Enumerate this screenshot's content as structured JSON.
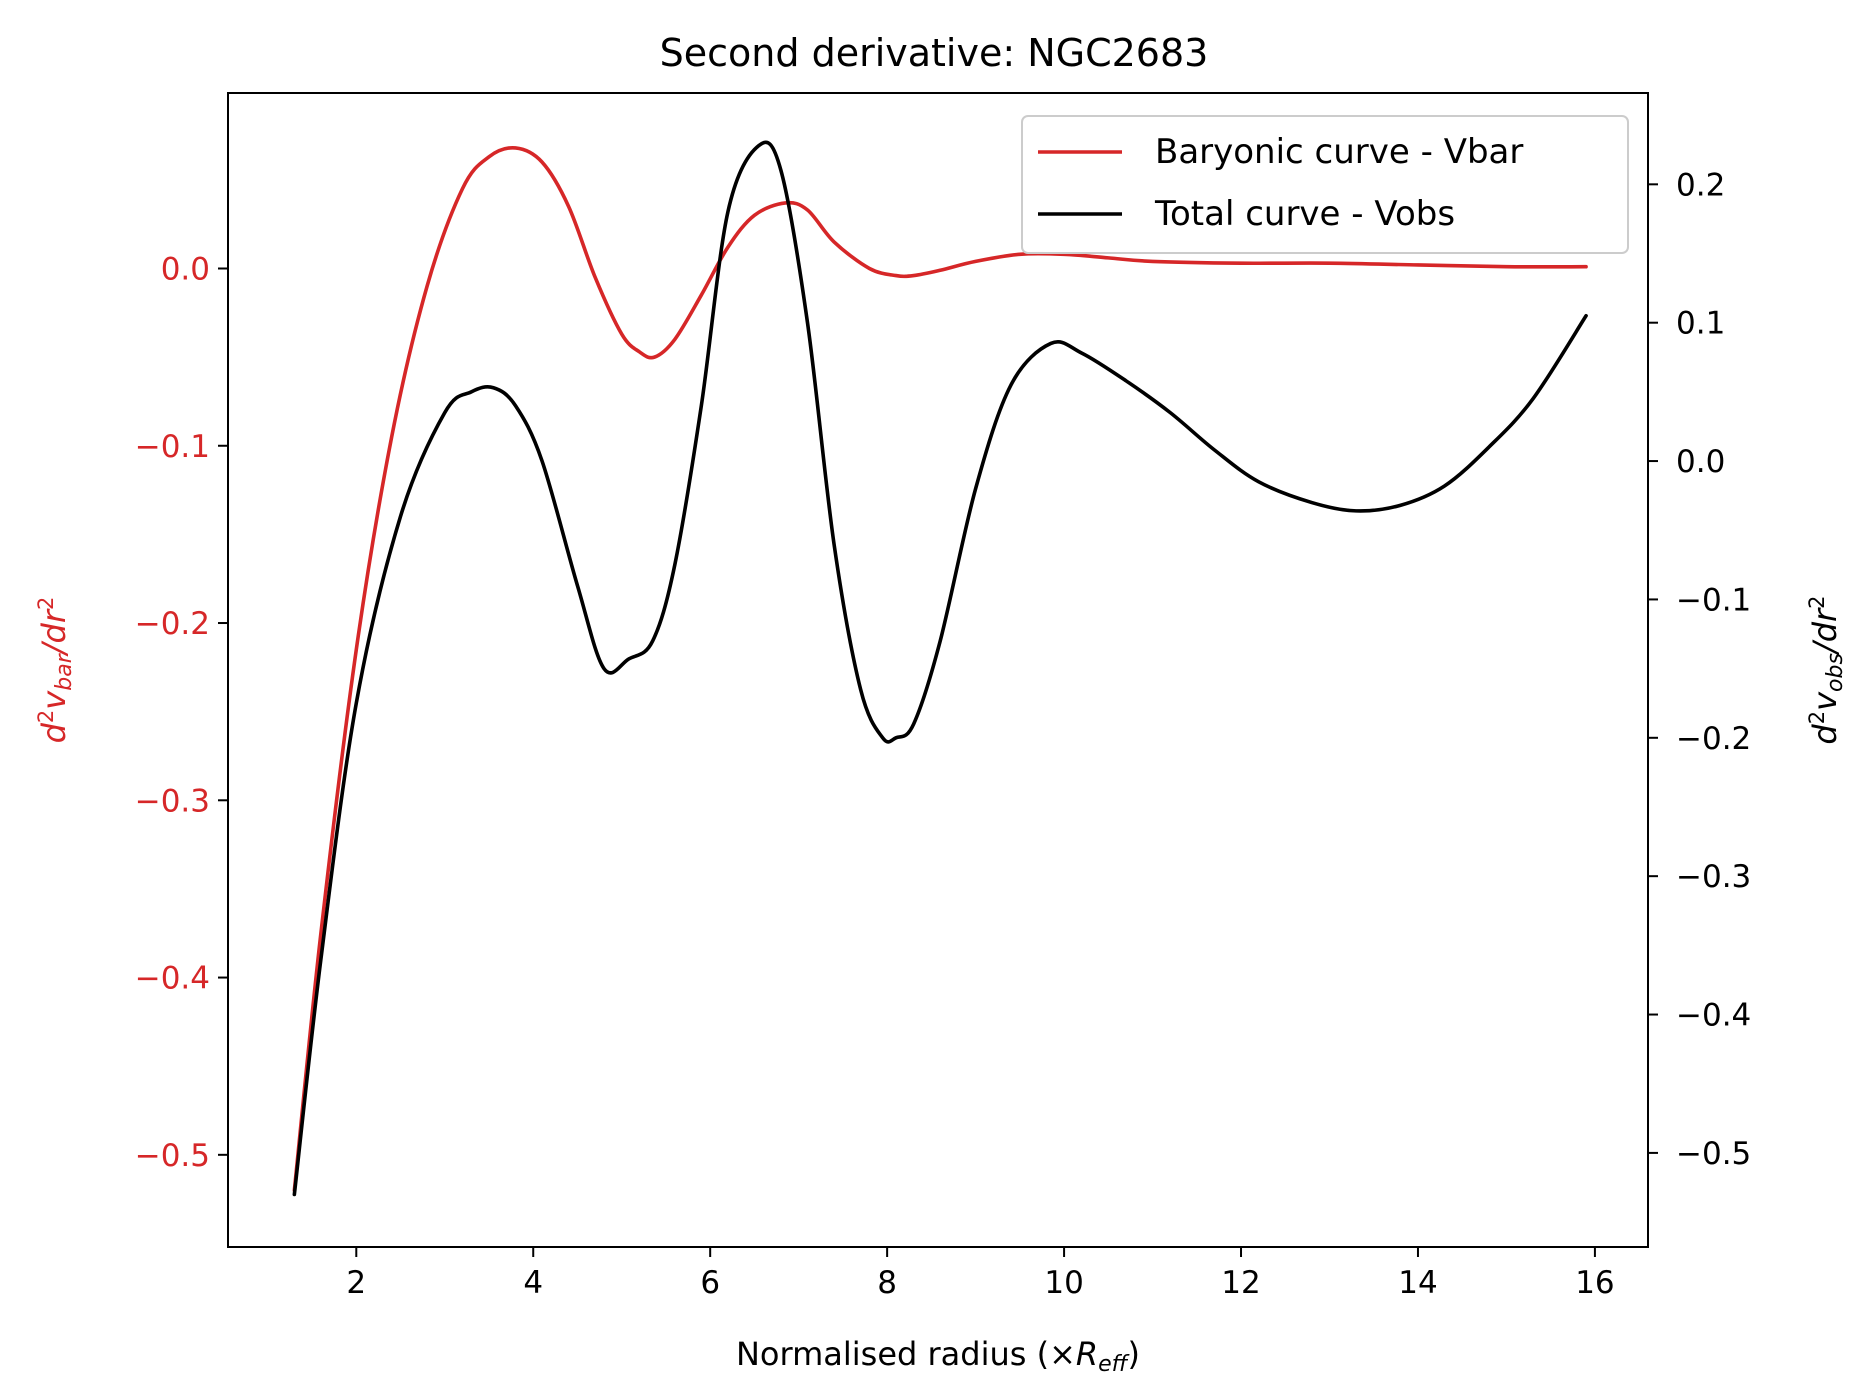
{
  "chart_data": {
    "type": "line",
    "title": "Second derivative: NGC2683",
    "xlabel": {
      "prefix": "Normalised radius (×",
      "var": "R",
      "sub": "eff",
      "suffix": ")"
    },
    "ylabel_left": {
      "d": "d",
      "sup1": "2",
      "v": "v",
      "sub": "bar",
      "mid": "/dr",
      "sup2": "2"
    },
    "ylabel_right": {
      "d": "d",
      "sup1": "2",
      "v": "v",
      "sub": "obs",
      "mid": "/dr",
      "sup2": "2"
    },
    "xlim": [
      0.55,
      16.6
    ],
    "ylim_left": [
      -0.552,
      0.099
    ],
    "ylim_right": [
      -0.568,
      0.266
    ],
    "x_ticks": [
      2,
      4,
      6,
      8,
      10,
      12,
      14,
      16
    ],
    "x_tick_labels": [
      "2",
      "4",
      "6",
      "8",
      "10",
      "12",
      "14",
      "16"
    ],
    "y_left_ticks": [
      0.0,
      -0.1,
      -0.2,
      -0.3,
      -0.4,
      -0.5
    ],
    "y_left_tick_labels": [
      "0.0",
      "−0.1",
      "−0.2",
      "−0.3",
      "−0.4",
      "−0.5"
    ],
    "y_right_ticks": [
      0.2,
      0.1,
      0.0,
      -0.1,
      -0.2,
      -0.3,
      -0.4,
      -0.5
    ],
    "y_right_tick_labels": [
      "0.2",
      "0.1",
      "0.0",
      "−0.1",
      "−0.2",
      "−0.3",
      "−0.4",
      "−0.5"
    ],
    "legend_position": "upper right",
    "grid": false,
    "colors": {
      "bar": "#d62728",
      "obs": "#000000",
      "left_axis": "#d62728",
      "right_axis": "#000000"
    },
    "series": [
      {
        "name": "Baryonic curve - Vbar",
        "axis": "left",
        "color": "#d62728",
        "x": [
          1.3,
          1.6,
          2.0,
          2.4,
          2.8,
          3.2,
          3.5,
          3.8,
          4.1,
          4.4,
          4.7,
          5.0,
          5.2,
          5.37,
          5.6,
          5.9,
          6.2,
          6.5,
          6.85,
          7.1,
          7.4,
          7.8,
          8.1,
          8.3,
          8.6,
          9.0,
          9.5,
          10.0,
          10.5,
          11.0,
          12.0,
          13.0,
          14.0,
          15.0,
          15.9
        ],
        "y": [
          -0.52,
          -0.375,
          -0.215,
          -0.095,
          -0.01,
          0.045,
          0.063,
          0.068,
          0.06,
          0.035,
          -0.005,
          -0.037,
          -0.047,
          -0.05,
          -0.04,
          -0.015,
          0.012,
          0.03,
          0.037,
          0.033,
          0.015,
          0.0,
          -0.004,
          -0.004,
          -0.001,
          0.004,
          0.008,
          0.008,
          0.006,
          0.004,
          0.003,
          0.003,
          0.002,
          0.001,
          0.001
        ]
      },
      {
        "name": "Total curve - Vobs",
        "axis": "right",
        "color": "#000000",
        "x": [
          1.3,
          1.6,
          2.0,
          2.5,
          3.0,
          3.3,
          3.55,
          3.8,
          4.1,
          4.5,
          4.8,
          5.08,
          5.35,
          5.6,
          5.9,
          6.2,
          6.55,
          6.8,
          7.1,
          7.4,
          7.7,
          7.95,
          8.1,
          8.3,
          8.6,
          9.0,
          9.4,
          9.85,
          10.2,
          10.7,
          11.2,
          11.7,
          12.2,
          12.8,
          13.3,
          13.8,
          14.3,
          14.8,
          15.3,
          15.9
        ],
        "y": [
          -0.53,
          -0.36,
          -0.175,
          -0.04,
          0.035,
          0.05,
          0.053,
          0.04,
          0.0,
          -0.09,
          -0.15,
          -0.143,
          -0.13,
          -0.075,
          0.04,
          0.18,
          0.228,
          0.21,
          0.1,
          -0.06,
          -0.165,
          -0.2,
          -0.2,
          -0.19,
          -0.13,
          -0.02,
          0.055,
          0.085,
          0.078,
          0.058,
          0.035,
          0.008,
          -0.015,
          -0.03,
          -0.036,
          -0.032,
          -0.018,
          0.01,
          0.045,
          0.105
        ]
      }
    ]
  }
}
